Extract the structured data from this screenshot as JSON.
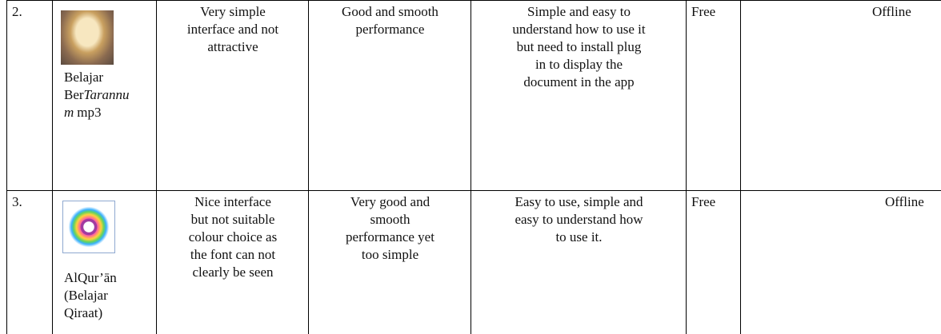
{
  "table": {
    "rows": [
      {
        "no": "2.",
        "name": [
          [
            {
              "text": "Belajar"
            }
          ],
          [
            {
              "text": "Ber"
            },
            {
              "text": "Tarannu",
              "italic": true
            }
          ],
          [
            {
              "text": "m",
              "italic": true
            },
            {
              "text": "mp3"
            }
          ]
        ],
        "interface": [
          "Very simple",
          "interface and not",
          "attractive"
        ],
        "performance": [
          "Good and smooth",
          "performance"
        ],
        "usability": [
          "Simple and easy to",
          "understand how to use it",
          "but need to install plug",
          "in to display the",
          "document in the app"
        ],
        "price": "Free",
        "mode": "Offline"
      },
      {
        "no": "3.",
        "name": [
          [
            {
              "text": "AlQur’ān"
            }
          ],
          [
            {
              "text": "(Belajar"
            }
          ],
          [
            {
              "text": "Qiraat)"
            }
          ]
        ],
        "interface": [
          "Nice interface",
          "but not suitable",
          "colour choice as",
          "the font can not",
          "clearly be seen"
        ],
        "performance": [
          "Very good and",
          "smooth",
          "performance yet",
          "too simple"
        ],
        "usability": [
          "Easy to use, simple and",
          "easy to understand how",
          "to use it."
        ],
        "price": "Free",
        "mode": "Offline"
      }
    ]
  }
}
